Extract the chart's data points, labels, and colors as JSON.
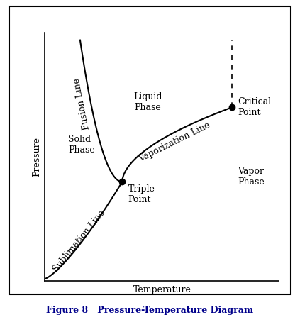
{
  "title": "Figure 8   Pressure-Temperature Diagram",
  "title_color": "#00008B",
  "xlabel": "Temperature",
  "ylabel": "Pressure",
  "background_color": "#ffffff",
  "triple_point": [
    0.33,
    0.4
  ],
  "critical_point": [
    0.8,
    0.7
  ],
  "fusion_line_label": "Fusion Line",
  "vaporization_line_label": "Vaporization Line",
  "sublimation_line_label": "Sublimation Line",
  "phase_solid": "Solid\nPhase",
  "phase_liquid": "Liquid\nPhase",
  "phase_vapor": "Vapor\nPhase",
  "triple_point_label": "Triple\nPoint",
  "critical_point_label": "Critical\nPoint",
  "font_size_label": 9,
  "font_size_phase": 9,
  "font_size_axis": 9,
  "font_size_title": 9,
  "font_family": "serif"
}
